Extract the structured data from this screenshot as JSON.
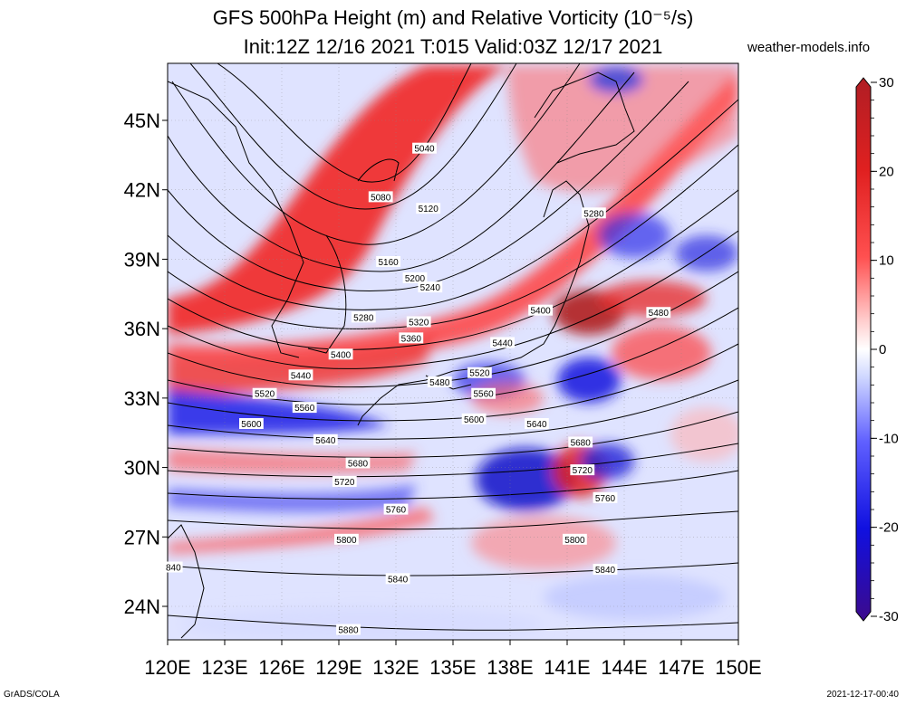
{
  "title_line1": "GFS 500hPa Height (m) and Relative Vorticity (10⁻⁵/s)",
  "title_line2": "Init:12Z 12/16 2021 T:015 Valid:03Z 12/17 2021",
  "site": "weather-models.info",
  "footer_left": "GrADS/COLA",
  "footer_right": "2021-12-17-00:40",
  "lat_ticks": [
    {
      "label": "45N",
      "value": 45
    },
    {
      "label": "42N",
      "value": 42
    },
    {
      "label": "39N",
      "value": 39
    },
    {
      "label": "36N",
      "value": 36
    },
    {
      "label": "33N",
      "value": 33
    },
    {
      "label": "30N",
      "value": 30
    },
    {
      "label": "27N",
      "value": 27
    },
    {
      "label": "24N",
      "value": 24
    }
  ],
  "lon_ticks": [
    {
      "label": "120E",
      "value": 120
    },
    {
      "label": "123E",
      "value": 123
    },
    {
      "label": "126E",
      "value": 126
    },
    {
      "label": "129E",
      "value": 129
    },
    {
      "label": "132E",
      "value": 132
    },
    {
      "label": "135E",
      "value": 135
    },
    {
      "label": "138E",
      "value": 138
    },
    {
      "label": "141E",
      "value": 141
    },
    {
      "label": "144E",
      "value": 144
    },
    {
      "label": "147E",
      "value": 147
    },
    {
      "label": "150E",
      "value": 150
    }
  ],
  "colorbar": {
    "min": -30,
    "max": 30,
    "labels": [
      {
        "label": "30",
        "value": 30
      },
      {
        "label": "20",
        "value": 20
      },
      {
        "label": "10",
        "value": 10
      },
      {
        "label": "0",
        "value": 0
      },
      {
        "label": "-10",
        "value": -10
      },
      {
        "label": "-20",
        "value": -20
      },
      {
        "label": "-30",
        "value": -30
      }
    ],
    "colors": {
      "high": "#c8262a",
      "mid_high": "#ff2020",
      "low_pos": "#ffc8c8",
      "zero": "#ffffff",
      "low_neg": "#c8d0ff",
      "mid_low": "#2020ff",
      "low": "#400090"
    }
  },
  "contour_labels": [
    {
      "text": "5040",
      "lon": 133.5,
      "lat": 43.8
    },
    {
      "text": "5080",
      "lon": 131.2,
      "lat": 41.7
    },
    {
      "text": "5120",
      "lon": 133.7,
      "lat": 41.2
    },
    {
      "text": "5280",
      "lon": 142.4,
      "lat": 41.0
    },
    {
      "text": "5160",
      "lon": 131.6,
      "lat": 38.9
    },
    {
      "text": "5200",
      "lon": 133.0,
      "lat": 38.2
    },
    {
      "text": "5240",
      "lon": 133.8,
      "lat": 37.8
    },
    {
      "text": "5400",
      "lon": 139.6,
      "lat": 36.8
    },
    {
      "text": "5480",
      "lon": 145.8,
      "lat": 36.7
    },
    {
      "text": "5280",
      "lon": 130.3,
      "lat": 36.5
    },
    {
      "text": "5320",
      "lon": 133.2,
      "lat": 36.3
    },
    {
      "text": "5360",
      "lon": 132.8,
      "lat": 35.6
    },
    {
      "text": "5440",
      "lon": 137.6,
      "lat": 35.4
    },
    {
      "text": "5400",
      "lon": 129.1,
      "lat": 34.9
    },
    {
      "text": "5440",
      "lon": 127.0,
      "lat": 34.0
    },
    {
      "text": "5480",
      "lon": 134.3,
      "lat": 33.7
    },
    {
      "text": "5520",
      "lon": 136.4,
      "lat": 34.1
    },
    {
      "text": "5520",
      "lon": 125.1,
      "lat": 33.2
    },
    {
      "text": "5560",
      "lon": 136.6,
      "lat": 33.2
    },
    {
      "text": "5560",
      "lon": 127.2,
      "lat": 32.6
    },
    {
      "text": "5600",
      "lon": 124.4,
      "lat": 31.9
    },
    {
      "text": "5600",
      "lon": 136.1,
      "lat": 32.1
    },
    {
      "text": "5640",
      "lon": 139.4,
      "lat": 31.9
    },
    {
      "text": "5640",
      "lon": 128.3,
      "lat": 31.2
    },
    {
      "text": "5680",
      "lon": 141.7,
      "lat": 31.1
    },
    {
      "text": "5680",
      "lon": 130.0,
      "lat": 30.2
    },
    {
      "text": "5720",
      "lon": 141.8,
      "lat": 29.9
    },
    {
      "text": "5720",
      "lon": 129.3,
      "lat": 29.4
    },
    {
      "text": "5760",
      "lon": 143.0,
      "lat": 28.7
    },
    {
      "text": "5760",
      "lon": 132.0,
      "lat": 28.2
    },
    {
      "text": "5800",
      "lon": 129.4,
      "lat": 26.9
    },
    {
      "text": "5800",
      "lon": 141.4,
      "lat": 26.9
    },
    {
      "text": "5840",
      "lon": 143.0,
      "lat": 25.6
    },
    {
      "text": "5840",
      "lon": 132.1,
      "lat": 25.2
    },
    {
      "text": "840",
      "lon": 120.3,
      "lat": 25.7
    },
    {
      "text": "5880",
      "lon": 129.5,
      "lat": 23.0
    }
  ]
}
